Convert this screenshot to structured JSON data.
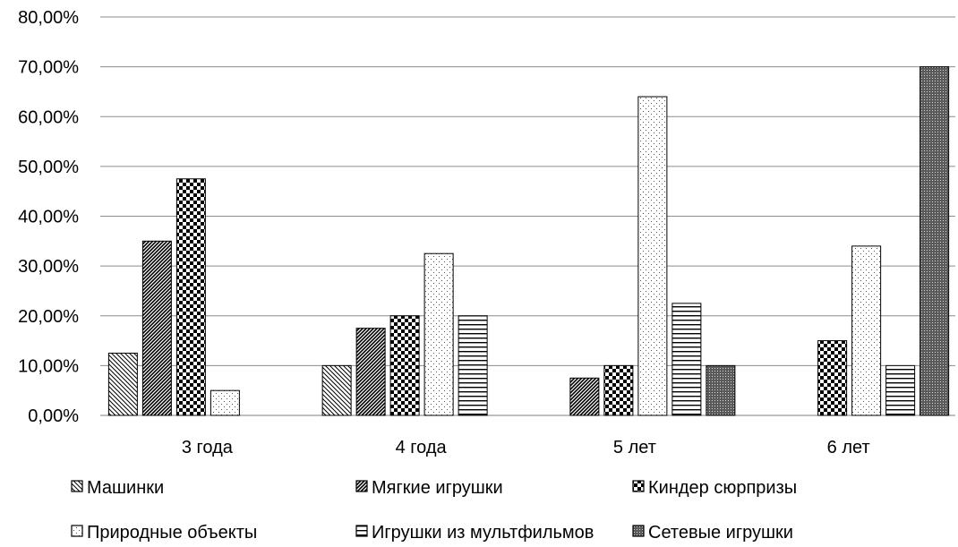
{
  "chart_data": {
    "type": "bar",
    "categories": [
      "3 года",
      "4 года",
      "5 лет",
      "6 лет"
    ],
    "series": [
      {
        "name": "Машинки",
        "values": [
          12.5,
          10,
          0,
          0
        ],
        "pattern": "diag-light"
      },
      {
        "name": "Мягкие игрушки",
        "values": [
          35,
          17.5,
          7.5,
          0
        ],
        "pattern": "diag-dense"
      },
      {
        "name": "Киндер сюрпризы",
        "values": [
          47.5,
          20,
          10,
          15
        ],
        "pattern": "checker"
      },
      {
        "name": "Природные объекты",
        "values": [
          5,
          32.5,
          64,
          34
        ],
        "pattern": "dots"
      },
      {
        "name": "Игрушки из мультфильмов",
        "values": [
          0,
          20,
          22.5,
          10
        ],
        "pattern": "horizontal"
      },
      {
        "name": "Сетевые игрушки",
        "values": [
          0,
          0,
          10,
          70
        ],
        "pattern": "dark-dots"
      }
    ],
    "y_ticks": [
      "0,00%",
      "10,00%",
      "20,00%",
      "30,00%",
      "40,00%",
      "50,00%",
      "60,00%",
      "70,00%",
      "80,00%"
    ],
    "ylim": [
      0,
      80
    ],
    "grid": true,
    "legend": "bottom",
    "title": "",
    "xlabel": "",
    "ylabel": ""
  }
}
